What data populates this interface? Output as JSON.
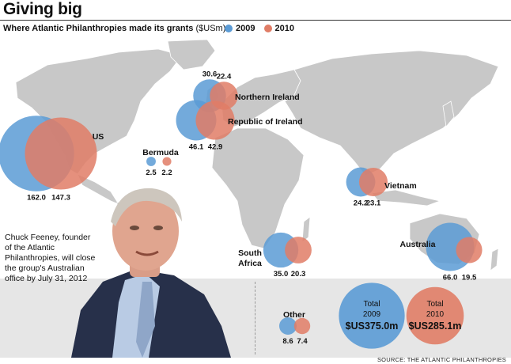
{
  "header": {
    "title": "Giving big"
  },
  "subtitle": {
    "main": "Where Atlantic Philanthropies made its grants",
    "unit": "($USm)"
  },
  "colors": {
    "y2009": "#5b9bd5",
    "y2010": "#e07d66",
    "land": "#c8c8c8",
    "band": "#e6e6e6"
  },
  "caption": "Chuck Feeney, founder of the Atlantic Philanthropies, will close the group's Australian office by July 31, 2012",
  "source": "SOURCE: THE ATLANTIC PHILANTHROPIES",
  "chart_data": {
    "type": "bubble-map",
    "title": "Where Atlantic Philanthropies made its grants ($USm)",
    "legend": [
      "2009",
      "2010"
    ],
    "legend_placement": "top",
    "series_names": [
      "2009",
      "2010"
    ],
    "regions": [
      {
        "name": "US",
        "v2009": 162.0,
        "v2010": 147.3,
        "label2009": "162.0",
        "label2010": "147.3"
      },
      {
        "name": "Bermuda",
        "v2009": 2.5,
        "v2010": 2.2,
        "label2009": "2.5",
        "label2010": "2.2"
      },
      {
        "name": "Northern Ireland",
        "v2009": 30.6,
        "v2010": 22.4,
        "label2009": "30.6",
        "label2010": "22.4"
      },
      {
        "name": "Republic of Ireland",
        "v2009": 46.1,
        "v2010": 42.9,
        "label2009": "46.1",
        "label2010": "42.9"
      },
      {
        "name": "Vietnam",
        "v2009": 24.2,
        "v2010": 23.1,
        "label2009": "24.2",
        "label2010": "23.1"
      },
      {
        "name": "South Africa",
        "v2009": 35.0,
        "v2010": 20.3,
        "label2009": "35.0",
        "label2010": "20.3"
      },
      {
        "name": "Australia",
        "v2009": 66.0,
        "v2010": 19.5,
        "label2009": "66.0",
        "label2010": "19.5"
      },
      {
        "name": "Other",
        "v2009": 8.6,
        "v2010": 7.4,
        "label2009": "8.6",
        "label2010": "7.4"
      }
    ],
    "totals": [
      {
        "label": "Total",
        "year": "2009",
        "value": 375.0,
        "text": "$US375.0m"
      },
      {
        "label": "Total",
        "year": "2010",
        "value": 285.1,
        "text": "$US285.1m"
      }
    ]
  }
}
